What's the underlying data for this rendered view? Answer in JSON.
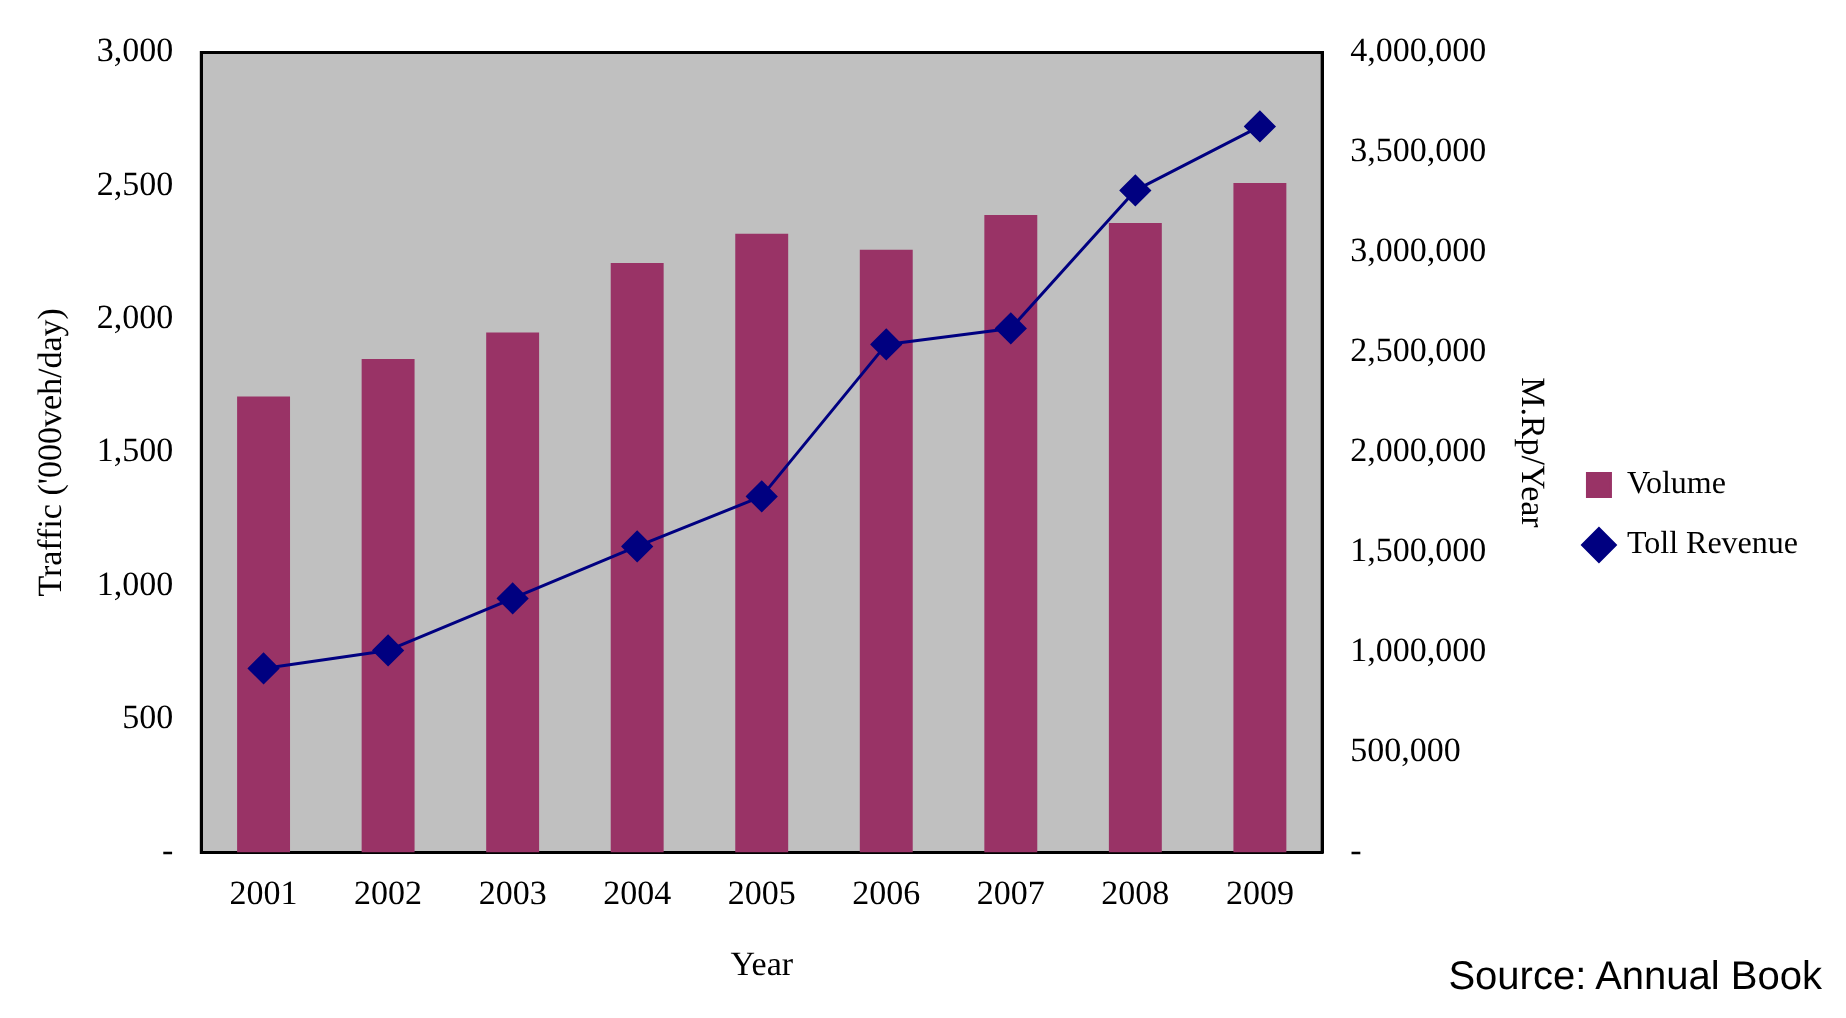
{
  "chart_data": {
    "type": "bar",
    "xlabel": "Year",
    "ylabel": "Traffic ('000veh/day)",
    "y2label": "M.Rp/Year",
    "categories": [
      "2001",
      "2002",
      "2003",
      "2004",
      "2005",
      "2006",
      "2007",
      "2008",
      "2009"
    ],
    "series": [
      {
        "name": "Volume",
        "color": "#993366",
        "values": [
          1710,
          1850,
          1950,
          2210,
          2320,
          2260,
          2390,
          2360,
          2510
        ]
      },
      {
        "name": "Toll Revenue",
        "type": "line",
        "axis": "y2",
        "color": "#000080",
        "marker": "diamond",
        "values": [
          920000,
          1010000,
          1270000,
          1530000,
          1780000,
          2540000,
          2620000,
          3310000,
          3630000
        ]
      }
    ],
    "ylim": [
      0,
      3000
    ],
    "yticks": [
      {
        "value": 0,
        "label": "-"
      },
      500,
      {
        "value": 1000,
        "label": "1,000"
      },
      {
        "value": 1500,
        "label": "1,500"
      },
      {
        "value": 2000,
        "label": "2,000"
      },
      {
        "value": 2500,
        "label": "2,500"
      },
      {
        "value": 3000,
        "label": "3,000"
      }
    ],
    "y2lim": [
      0,
      4000000
    ],
    "y2ticks": [
      {
        "value": 0,
        "label": "-"
      },
      {
        "value": 500000,
        "label": "500,000"
      },
      {
        "value": 1000000,
        "label": "1,000,000"
      },
      {
        "value": 1500000,
        "label": "1,500,000"
      },
      {
        "value": 2000000,
        "label": "2,000,000"
      },
      {
        "value": 2500000,
        "label": "2,500,000"
      },
      {
        "value": 3000000,
        "label": "3,000,000"
      },
      {
        "value": 3500000,
        "label": "3,500,000"
      },
      {
        "value": 4000000,
        "label": "4,000,000"
      }
    ],
    "grid": false,
    "legend": "right",
    "annotations": [
      "Source: Annual Book"
    ]
  }
}
